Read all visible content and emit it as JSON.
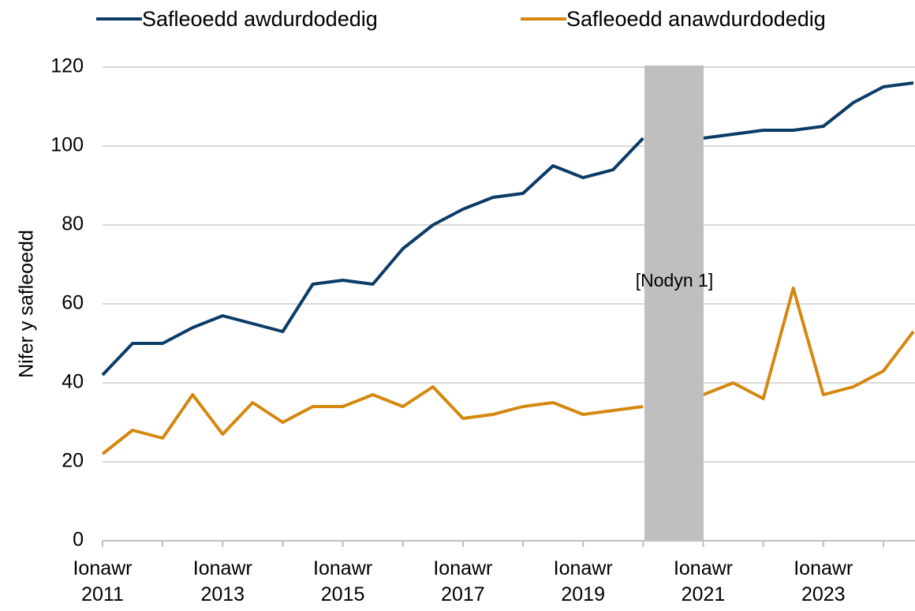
{
  "chart_data": {
    "type": "line",
    "y_label": "Nifer y safleoedd",
    "categories": [
      "Ionawr 2011",
      null,
      null,
      null,
      "Ionawr 2013",
      null,
      null,
      null,
      "Ionawr 2015",
      null,
      null,
      null,
      "Ionawr 2017",
      null,
      null,
      null,
      "Ionawr 2019",
      null,
      null,
      null,
      "Ionawr 2021",
      null,
      null,
      null,
      "Ionawr 2023",
      null,
      null,
      null
    ],
    "series": [
      {
        "name": "Safleoedd awdurdodedig",
        "color": "#0b3c68",
        "values": [
          42,
          50,
          50,
          54,
          57,
          55,
          53,
          65,
          66,
          65,
          74,
          80,
          84,
          87,
          88,
          95,
          92,
          94,
          102,
          null,
          102,
          103,
          104,
          104,
          105,
          111,
          115,
          116
        ]
      },
      {
        "name": "Safleoedd anawdurdodedig",
        "color": "#d4880f",
        "values": [
          22,
          28,
          26,
          37,
          27,
          35,
          30,
          34,
          34,
          37,
          34,
          39,
          31,
          32,
          34,
          35,
          32,
          33,
          34,
          null,
          37,
          40,
          36,
          64,
          37,
          39,
          43,
          53
        ]
      }
    ],
    "annotation": "[Nodyn 1]",
    "ylim": [
      0,
      120
    ],
    "yticks": [
      0,
      20,
      40,
      60,
      80,
      100,
      120
    ],
    "grid": true
  }
}
